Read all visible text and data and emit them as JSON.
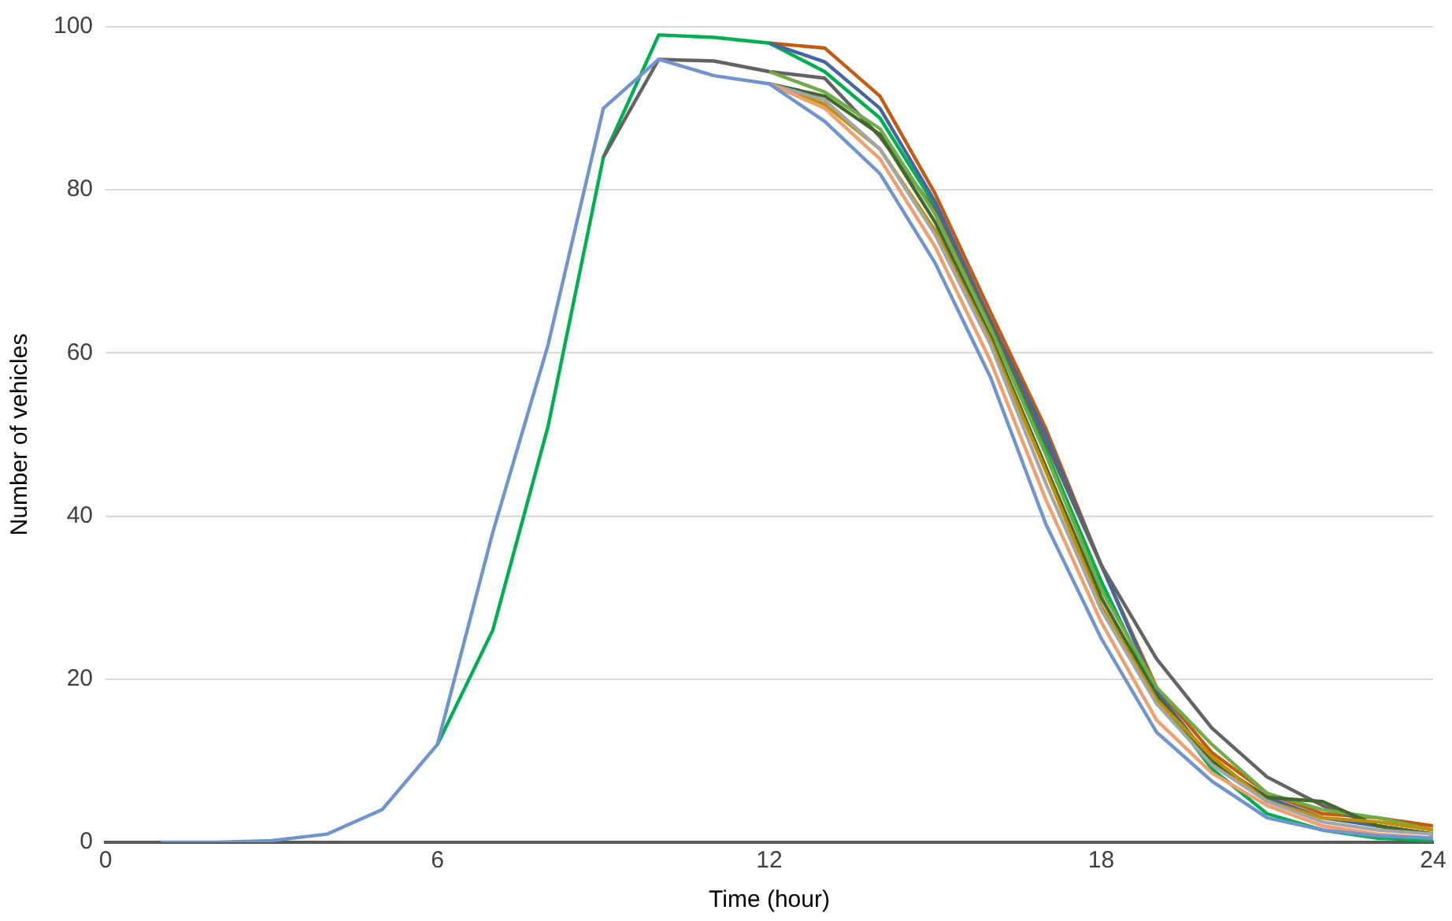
{
  "chart_data": {
    "type": "line",
    "xlabel": "Time (hour)",
    "ylabel": "Number of vehicles",
    "x": [
      1,
      2,
      3,
      4,
      5,
      6,
      7,
      8,
      9,
      10,
      11,
      12,
      13,
      14,
      15,
      16,
      17,
      18,
      19,
      20,
      21,
      22,
      23,
      24
    ],
    "xlim": [
      0,
      24
    ],
    "xticks": [
      0,
      6,
      12,
      18,
      24
    ],
    "ylim": [
      0,
      100
    ],
    "yticks": [
      0,
      20,
      40,
      60,
      80,
      100
    ],
    "grid": "y",
    "legend": false,
    "marker": "none",
    "line_style": "solid",
    "series": [
      {
        "color": "#7094cd",
        "values": [
          0,
          0,
          0.2,
          1,
          4,
          12,
          38,
          61,
          90,
          96,
          94,
          93,
          88.4,
          82,
          71,
          57,
          39,
          25,
          13.5,
          7.5,
          3,
          1.5,
          0.8,
          0.5
        ]
      },
      {
        "color": "#f0a070",
        "values": [
          null,
          null,
          null,
          null,
          null,
          null,
          null,
          null,
          null,
          null,
          null,
          93,
          90,
          83.8,
          73,
          59,
          42,
          27,
          15,
          8.5,
          4.5,
          2,
          1,
          0.5
        ]
      },
      {
        "color": "#a5a5a5",
        "values": [
          null,
          null,
          null,
          null,
          null,
          null,
          null,
          null,
          null,
          null,
          null,
          93,
          91,
          85,
          74.5,
          61,
          44,
          28.5,
          17,
          9.5,
          5,
          2.5,
          1.5,
          1
        ]
      },
      {
        "color": "#bf9000",
        "values": [
          null,
          null,
          null,
          null,
          null,
          null,
          null,
          null,
          null,
          null,
          null,
          93,
          90.5,
          85,
          75,
          61.5,
          45.5,
          29,
          17.5,
          10.5,
          5,
          3,
          2.5,
          1.5
        ]
      },
      {
        "color": "#43682b",
        "values": [
          null,
          null,
          null,
          null,
          null,
          null,
          null,
          null,
          null,
          null,
          null,
          93,
          91.5,
          86.8,
          76,
          62,
          46,
          30,
          18,
          10,
          5.5,
          5,
          2,
          1
        ]
      },
      {
        "color": "#70ad47",
        "values": [
          null,
          null,
          null,
          null,
          null,
          null,
          null,
          null,
          null,
          null,
          null,
          94.5,
          92,
          87.5,
          77,
          63,
          47.5,
          31,
          19,
          12,
          6,
          4,
          3,
          1.5
        ]
      },
      {
        "color": "#636363",
        "values": [
          null,
          null,
          null,
          null,
          null,
          null,
          null,
          null,
          84,
          96,
          95.8,
          94.5,
          93.7,
          86.5,
          77.5,
          64,
          49,
          34,
          22.5,
          14,
          8,
          4.5,
          2,
          1
        ]
      },
      {
        "color": "#44679f",
        "values": [
          null,
          null,
          null,
          null,
          null,
          null,
          null,
          null,
          null,
          null,
          null,
          98,
          95.7,
          90,
          78.5,
          64,
          50,
          34,
          18.5,
          10,
          5.5,
          3,
          2,
          1
        ]
      },
      {
        "color": "#c55a11",
        "values": [
          null,
          null,
          null,
          null,
          null,
          null,
          null,
          null,
          null,
          null,
          null,
          98,
          97.4,
          91.5,
          79.5,
          65,
          50.7,
          34,
          19,
          11,
          6,
          3.5,
          3,
          2
        ]
      },
      {
        "color": "#00b050",
        "values": [
          null,
          null,
          null,
          null,
          null,
          12,
          26,
          51,
          84,
          99,
          98.7,
          98,
          94.5,
          88.8,
          78,
          63.5,
          48,
          32,
          18,
          9,
          3.5,
          1.5,
          0.5,
          0.2
        ]
      }
    ]
  }
}
